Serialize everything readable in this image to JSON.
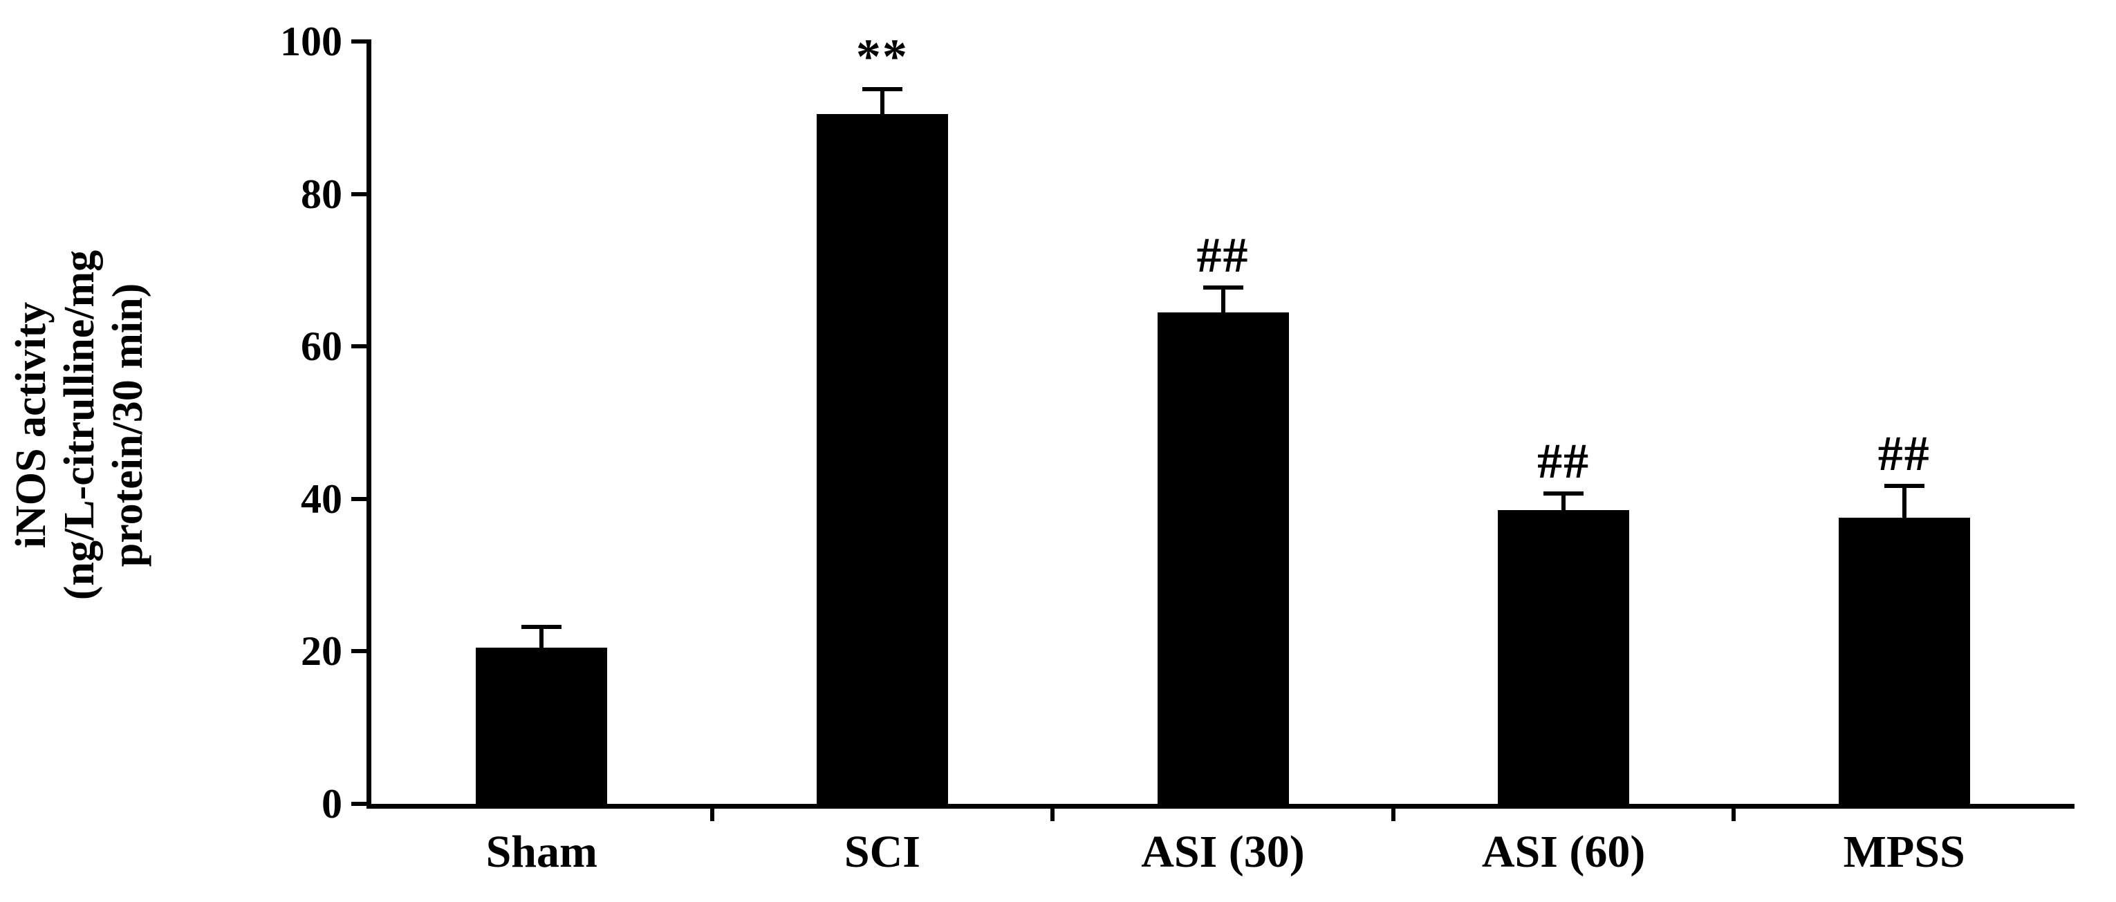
{
  "chart_data": {
    "type": "bar",
    "title": "",
    "categories": [
      "Sham",
      "SCI",
      "ASI (30)",
      "ASI (60)",
      "MPSS"
    ],
    "values": [
      20.5,
      90.5,
      64.5,
      38.5,
      37.5
    ],
    "errors": [
      3.0,
      3.5,
      3.5,
      2.5,
      4.5
    ],
    "annotations": [
      "",
      "**",
      "##",
      "##",
      "##"
    ],
    "ylabel_lines": [
      "iNOS activity",
      "(ng/L-citrulline/mg",
      "protein/30 min)"
    ],
    "xlabel": "",
    "ylabel": "iNOS activity (ng/L-citrulline/mg protein/30 min)",
    "yticks": [
      0,
      20,
      40,
      60,
      80,
      100
    ],
    "ylim": [
      0,
      100
    ],
    "grid": false,
    "legend": "none",
    "bar_color": "#000000",
    "background": "#ffffff"
  }
}
